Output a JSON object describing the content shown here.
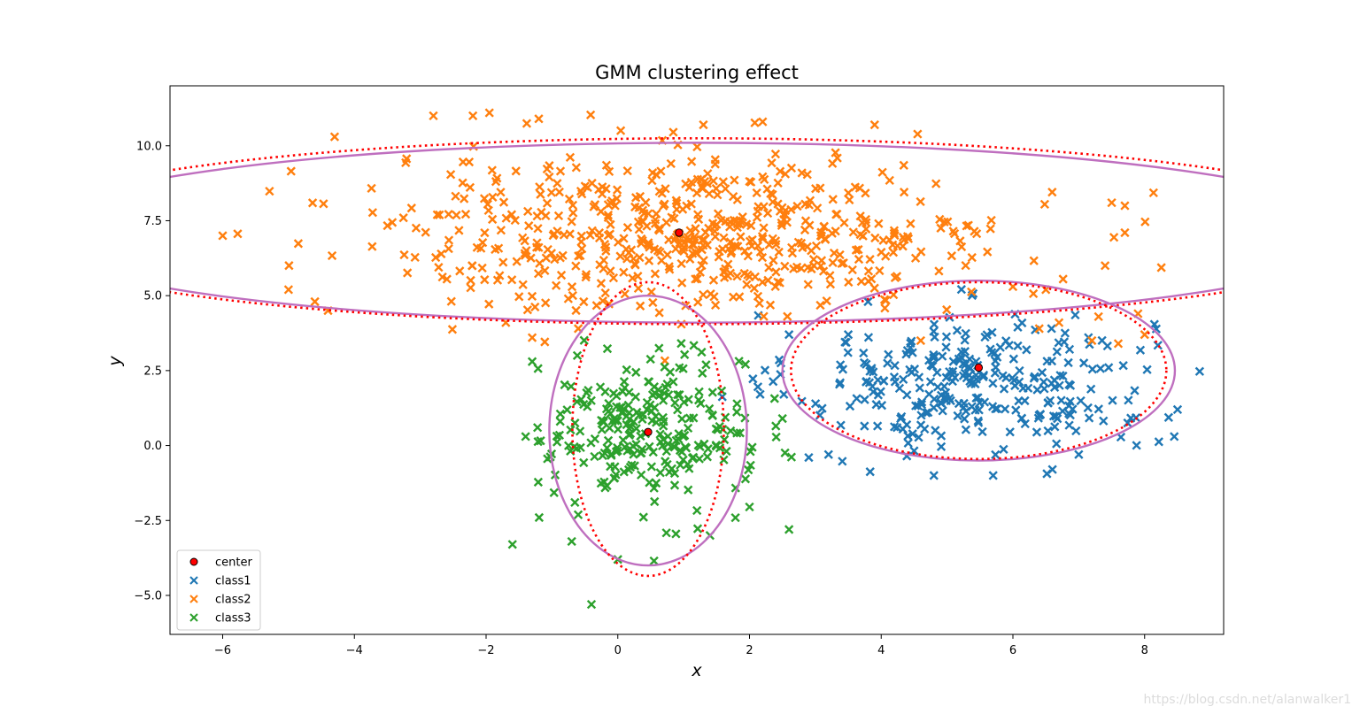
{
  "watermark": "https://blog.csdn.net/alanwalker1",
  "chart_data": {
    "type": "scatter",
    "title": "GMM clustering effect",
    "xlabel": "x",
    "ylabel": "y",
    "xlim": [
      -6.8,
      9.2
    ],
    "ylim": [
      -6.3,
      12.0
    ],
    "xticks": [
      {
        "value": -6,
        "label": "−6"
      },
      {
        "value": -4,
        "label": "−4"
      },
      {
        "value": -2,
        "label": "−2"
      },
      {
        "value": 0,
        "label": "0"
      },
      {
        "value": 2,
        "label": "2"
      },
      {
        "value": 4,
        "label": "4"
      },
      {
        "value": 6,
        "label": "6"
      },
      {
        "value": 8,
        "label": "8"
      }
    ],
    "yticks": [
      {
        "value": -5,
        "label": "−5.0"
      },
      {
        "value": -2.5,
        "label": "−2.5"
      },
      {
        "value": 0,
        "label": "0.0"
      },
      {
        "value": 2.5,
        "label": "2.5"
      },
      {
        "value": 5,
        "label": "5.0"
      },
      {
        "value": 7.5,
        "label": "7.5"
      },
      {
        "value": 10,
        "label": "10.0"
      }
    ],
    "grid": false,
    "legend_position": "lower-left",
    "legend": [
      {
        "label": "center",
        "marker": "circle",
        "color": "#ff0000"
      },
      {
        "label": "class1",
        "marker": "x",
        "color": "#1f77b4"
      },
      {
        "label": "class2",
        "marker": "x",
        "color": "#ff7f0e"
      },
      {
        "label": "class3",
        "marker": "x",
        "color": "#2ca02c"
      }
    ],
    "centers": {
      "name": "center",
      "color": "#ff0000",
      "edge": "#000000",
      "points": [
        [
          0.93,
          7.1
        ],
        [
          5.48,
          2.6
        ],
        [
          0.46,
          0.45
        ]
      ]
    },
    "series": [
      {
        "name": "class1",
        "color": "#1f77b4",
        "count": 300,
        "spread": {
          "mean": [
            5.4,
            2.1
          ],
          "sd": [
            1.35,
            1.15
          ]
        },
        "outliers": [
          [
            8.45,
            0.3
          ],
          [
            8.5,
            1.2
          ],
          [
            3.8,
            4.8
          ],
          [
            2.9,
            -0.4
          ],
          [
            3.2,
            -0.3
          ],
          [
            4.8,
            -1.0
          ],
          [
            6.6,
            -0.8
          ],
          [
            5.7,
            -1.0
          ],
          [
            7.0,
            -0.3
          ],
          [
            3.5,
            3.7
          ],
          [
            2.6,
            3.7
          ]
        ]
      },
      {
        "name": "class2",
        "color": "#ff7f0e",
        "count": 600,
        "spread": {
          "mean": [
            1.2,
            7.1
          ],
          "sd": [
            2.4,
            1.3
          ]
        },
        "outliers": [
          [
            -6.0,
            7.0
          ],
          [
            -5.0,
            5.2
          ],
          [
            -4.3,
            10.3
          ],
          [
            -2.8,
            11.0
          ],
          [
            -2.2,
            11.0
          ],
          [
            -1.95,
            11.1
          ],
          [
            -1.2,
            10.9
          ],
          [
            1.3,
            10.7
          ],
          [
            2.2,
            10.8
          ],
          [
            3.9,
            10.7
          ],
          [
            7.7,
            7.1
          ],
          [
            7.7,
            8.0
          ],
          [
            7.5,
            8.1
          ],
          [
            7.4,
            6.0
          ],
          [
            7.2,
            3.5
          ],
          [
            7.9,
            4.4
          ],
          [
            8.0,
            3.7
          ],
          [
            7.6,
            3.4
          ],
          [
            7.3,
            4.3
          ],
          [
            6.4,
            3.9
          ],
          [
            6.0,
            5.3
          ],
          [
            6.5,
            5.2
          ],
          [
            6.7,
            4.1
          ],
          [
            4.6,
            3.5
          ],
          [
            -1.3,
            3.6
          ],
          [
            -0.6,
            3.9
          ],
          [
            -4.6,
            4.8
          ],
          [
            -4.4,
            4.5
          ],
          [
            -1.7,
            4.1
          ]
        ]
      },
      {
        "name": "class3",
        "color": "#2ca02c",
        "count": 260,
        "spread": {
          "mean": [
            0.45,
            0.45
          ],
          "sd": [
            0.75,
            1.25
          ]
        },
        "outliers": [
          [
            -0.4,
            -5.3
          ],
          [
            -1.6,
            -3.3
          ],
          [
            -0.7,
            -3.2
          ],
          [
            0.0,
            -3.8
          ],
          [
            0.55,
            -3.85
          ],
          [
            2.6,
            -2.8
          ],
          [
            2.0,
            -2.05
          ],
          [
            -1.3,
            2.8
          ],
          [
            -1.4,
            0.3
          ],
          [
            2.4,
            0.65
          ],
          [
            2.5,
            0.9
          ],
          [
            1.4,
            -3.0
          ]
        ]
      }
    ],
    "ellipses": [
      {
        "cx": 1.2,
        "cy": 7.1,
        "rx": 10.2,
        "ry": 3.0,
        "angle_deg": 0,
        "style": "solid",
        "color": "#bf6fbf"
      },
      {
        "cx": 1.2,
        "cy": 7.15,
        "rx": 10.6,
        "ry": 3.1,
        "angle_deg": 0,
        "style": "dotted",
        "color": "#ff0000"
      },
      {
        "cx": 5.48,
        "cy": 2.5,
        "rx": 2.98,
        "ry": 3.0,
        "angle_deg": 0,
        "style": "solid",
        "color": "#bf6fbf"
      },
      {
        "cx": 5.48,
        "cy": 2.5,
        "rx": 2.85,
        "ry": 2.95,
        "angle_deg": 0,
        "style": "dotted",
        "color": "#ff0000"
      },
      {
        "cx": 0.46,
        "cy": 0.5,
        "rx": 1.5,
        "ry": 4.5,
        "angle_deg": 0,
        "style": "solid",
        "color": "#bf6fbf"
      },
      {
        "cx": 0.46,
        "cy": 0.55,
        "rx": 1.15,
        "ry": 4.9,
        "angle_deg": 0,
        "style": "dotted",
        "color": "#ff0000"
      }
    ]
  }
}
